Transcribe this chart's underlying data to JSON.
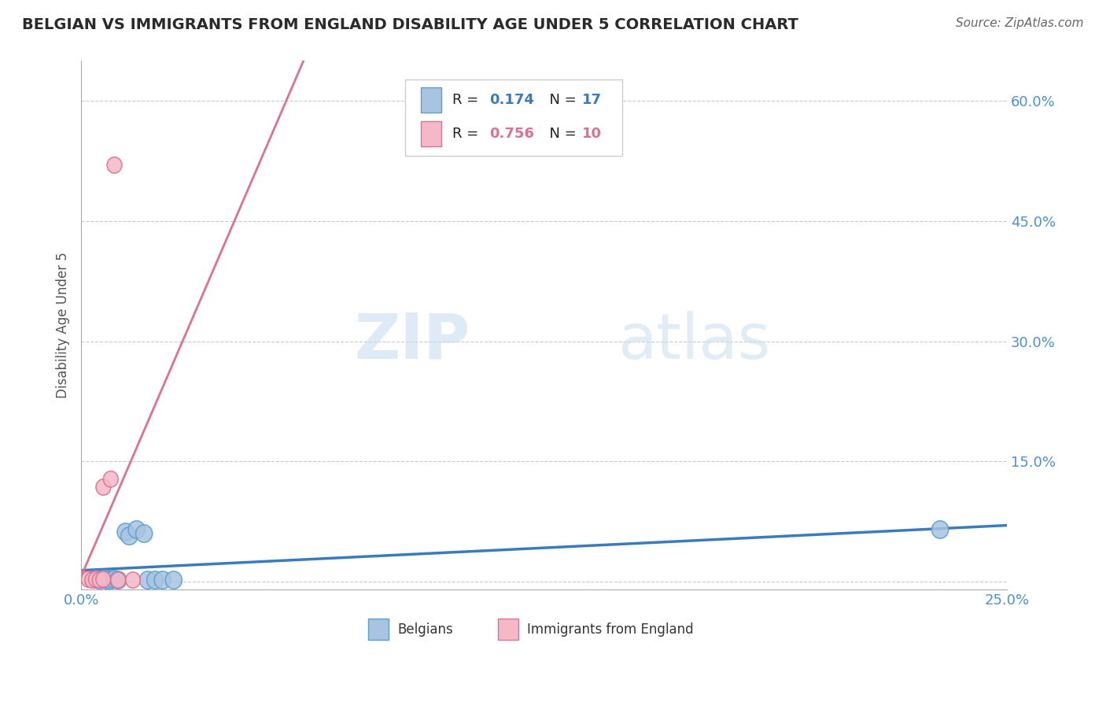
{
  "title": "BELGIAN VS IMMIGRANTS FROM ENGLAND DISABILITY AGE UNDER 5 CORRELATION CHART",
  "source": "Source: ZipAtlas.com",
  "ylabel": "Disability Age Under 5",
  "xlim": [
    0.0,
    0.25
  ],
  "ylim": [
    -0.01,
    0.65
  ],
  "xticks": [
    0.0,
    0.05,
    0.1,
    0.15,
    0.2,
    0.25
  ],
  "xticklabels": [
    "0.0%",
    "",
    "",
    "",
    "",
    "25.0%"
  ],
  "yticks": [
    0.0,
    0.15,
    0.3,
    0.45,
    0.6
  ],
  "yticklabels": [
    "",
    "15.0%",
    "30.0%",
    "45.0%",
    "60.0%"
  ],
  "belgians_x": [
    0.004,
    0.005,
    0.006,
    0.007,
    0.007,
    0.008,
    0.009,
    0.01,
    0.012,
    0.013,
    0.015,
    0.017,
    0.018,
    0.02,
    0.022,
    0.025,
    0.232
  ],
  "belgians_y": [
    0.003,
    0.002,
    0.003,
    0.002,
    0.003,
    0.002,
    0.003,
    0.002,
    0.062,
    0.057,
    0.065,
    0.06,
    0.002,
    0.002,
    0.002,
    0.002,
    0.065
  ],
  "england_x": [
    0.002,
    0.003,
    0.004,
    0.005,
    0.006,
    0.006,
    0.008,
    0.009,
    0.01,
    0.014
  ],
  "england_y": [
    0.003,
    0.002,
    0.003,
    0.002,
    0.003,
    0.118,
    0.128,
    0.52,
    0.002,
    0.002
  ],
  "belgian_fill": "#a8c4e0",
  "belgian_edge": "#5a9fd4",
  "england_fill": "#f4b8c8",
  "england_edge": "#e07090",
  "belgian_line_color": "#3a7abf",
  "england_line_color": "#e07090",
  "legend_r_belgian": "0.174",
  "legend_n_belgian": "17",
  "legend_r_england": "0.756",
  "legend_n_england": "10",
  "belgian_r_color": "#3a7abf",
  "england_r_color": "#3a7abf",
  "england_rval_color": "#e07090",
  "watermark_zip": "ZIP",
  "watermark_atlas": "atlas",
  "background_color": "#ffffff",
  "grid_color": "#bbbbbb",
  "title_color": "#2a2a2a",
  "source_color": "#666666",
  "tick_color": "#4a90d9",
  "label_color": "#555555"
}
